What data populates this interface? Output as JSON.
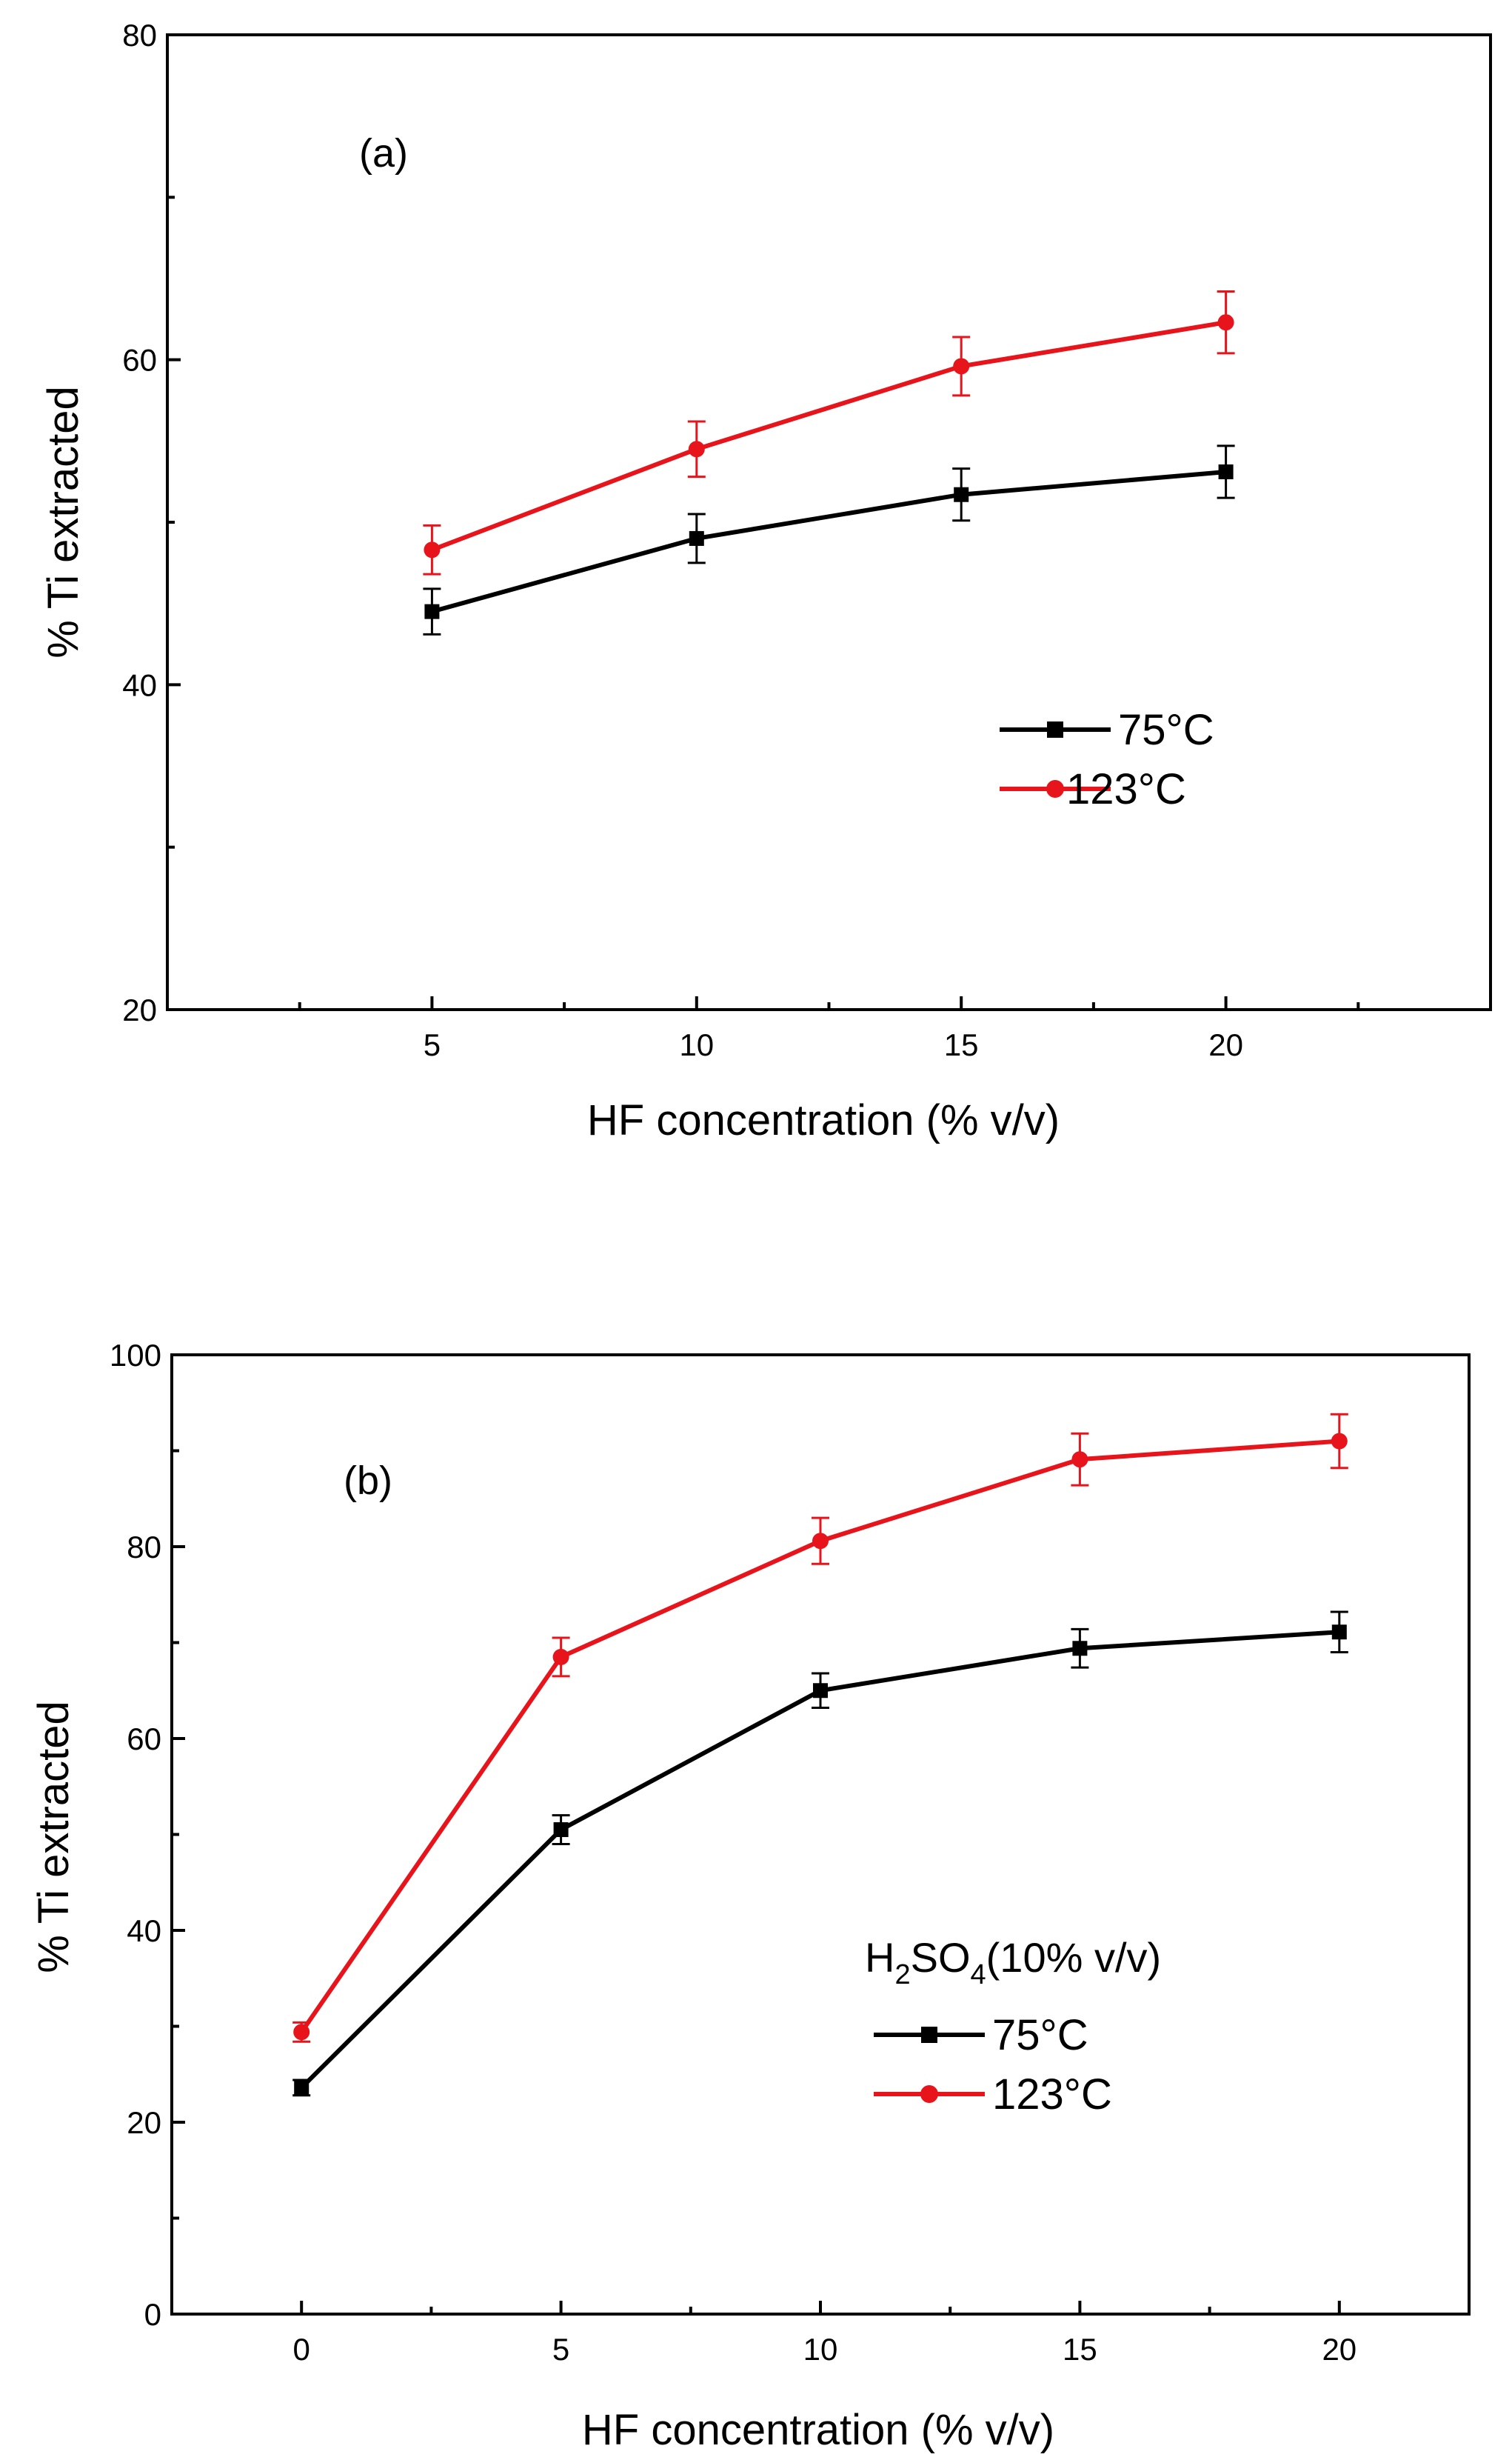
{
  "chart_data": [
    {
      "type": "line",
      "panel_label": "(a)",
      "xlabel": "HF concentration (% v/v)",
      "ylabel": "% Ti extracted",
      "xlim": [
        0,
        25
      ],
      "ylim": [
        20,
        80
      ],
      "xticks": [
        5,
        10,
        15,
        20
      ],
      "yticks": [
        20,
        40,
        60,
        80
      ],
      "xminor": [
        2.5,
        7.5,
        12.5,
        17.5,
        22.5
      ],
      "yminor": [
        30,
        50,
        70
      ],
      "legend_position": "lower-right",
      "series": [
        {
          "name": "75°C",
          "color": "#000000",
          "marker": "square",
          "x": [
            5,
            10,
            15,
            20
          ],
          "values": [
            44.5,
            49.0,
            51.7,
            53.1
          ],
          "errors": [
            1.4,
            1.5,
            1.6,
            1.6
          ]
        },
        {
          "name": "123°C",
          "color": "#e8141b",
          "marker": "circle",
          "x": [
            5,
            10,
            15,
            20
          ],
          "values": [
            48.3,
            54.5,
            59.6,
            62.3
          ],
          "errors": [
            1.5,
            1.7,
            1.8,
            1.9
          ]
        }
      ]
    },
    {
      "type": "line",
      "panel_label": "(b)",
      "xlabel": "HF concentration (% v/v)",
      "ylabel": "% Ti extracted",
      "xlim": [
        -2.5,
        22.5
      ],
      "ylim": [
        0,
        100
      ],
      "xticks": [
        0,
        5,
        10,
        15,
        20
      ],
      "yticks": [
        0,
        20,
        40,
        60,
        80,
        100
      ],
      "xminor": [
        2.5,
        7.5,
        12.5,
        17.5
      ],
      "yminor": [
        10,
        30,
        50,
        70,
        90
      ],
      "legend_position": "lower-right",
      "annotation": {
        "main": "H",
        "sub1": "2",
        "mid": "SO",
        "sub2": "4",
        "tail": "(10% v/v)"
      },
      "series": [
        {
          "name": "75°C",
          "color": "#000000",
          "marker": "square",
          "x": [
            0,
            5,
            10,
            15,
            20
          ],
          "values": [
            23.6,
            50.5,
            65.0,
            69.4,
            71.1
          ],
          "errors": [
            0.8,
            1.5,
            1.8,
            2.0,
            2.1
          ]
        },
        {
          "name": "123°C",
          "color": "#e8141b",
          "marker": "circle",
          "x": [
            0,
            5,
            10,
            15,
            20
          ],
          "values": [
            29.4,
            68.5,
            80.6,
            89.1,
            91.0
          ],
          "errors": [
            1.0,
            2.0,
            2.4,
            2.7,
            2.8
          ]
        }
      ]
    }
  ]
}
